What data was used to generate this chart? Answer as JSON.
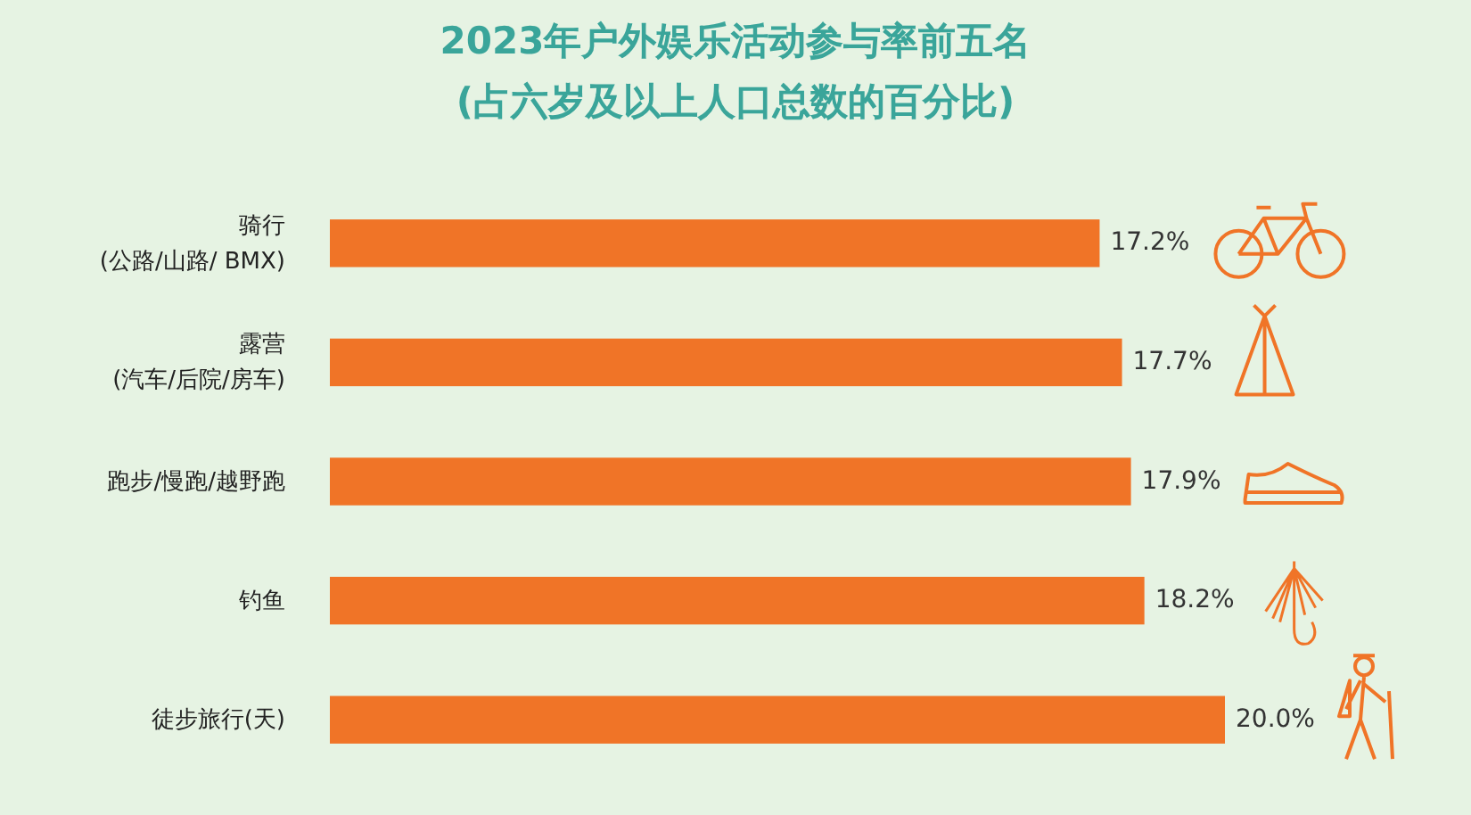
{
  "chart_data": {
    "type": "bar",
    "orientation": "horizontal",
    "title": "2023年户外娱乐活动参与率前五名\n(占六岁及以上人口总数的百分比)",
    "categories": [
      "骑行\n(公路/山路/ BMX)",
      "露营\n(汽车/后院/房车)",
      "跑步/慢跑/越野跑",
      "钓鱼",
      "徒步旅行(天)"
    ],
    "values": [
      17.2,
      17.7,
      17.9,
      18.2,
      20.0
    ],
    "value_labels": [
      "17.2%",
      "17.7%",
      "17.9%",
      "18.2%",
      "20.0%"
    ],
    "color": "#f07427"
  }
}
